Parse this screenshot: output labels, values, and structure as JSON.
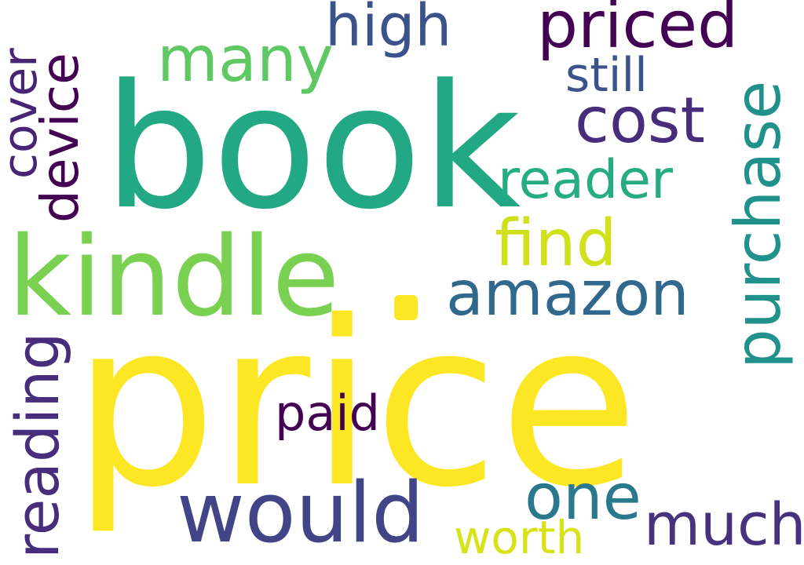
{
  "words": [
    {
      "id": "price",
      "text": "price",
      "color": "#fde725"
    },
    {
      "id": "book",
      "text": "book",
      "color": "#22a884"
    },
    {
      "id": "kindle",
      "text": "kindle",
      "color": "#7ad151"
    },
    {
      "id": "would",
      "text": "would",
      "color": "#414487"
    },
    {
      "id": "priced",
      "text": "priced",
      "color": "#440154"
    },
    {
      "id": "many",
      "text": "many",
      "color": "#5ec962"
    },
    {
      "id": "high",
      "text": "high",
      "color": "#3b528b"
    },
    {
      "id": "cost",
      "text": "cost",
      "color": "#472d7b"
    },
    {
      "id": "reader",
      "text": "reader",
      "color": "#25ac82"
    },
    {
      "id": "still",
      "text": "still",
      "color": "#3b528b"
    },
    {
      "id": "find",
      "text": "find",
      "color": "#d0e11c"
    },
    {
      "id": "amazon",
      "text": "amazon",
      "color": "#31688e"
    },
    {
      "id": "paid",
      "text": "paid",
      "color": "#440154"
    },
    {
      "id": "one",
      "text": "one",
      "color": "#2a788e"
    },
    {
      "id": "much",
      "text": "much",
      "color": "#46327e"
    },
    {
      "id": "worth",
      "text": "worth",
      "color": "#d8e219"
    },
    {
      "id": "purchase",
      "text": "purchase",
      "color": "#21918c"
    },
    {
      "id": "cover",
      "text": "cover",
      "color": "#482475"
    },
    {
      "id": "device",
      "text": "device",
      "color": "#440154"
    },
    {
      "id": "reading",
      "text": "reading",
      "color": "#472d7b"
    }
  ],
  "dot_color": "#fde725"
}
